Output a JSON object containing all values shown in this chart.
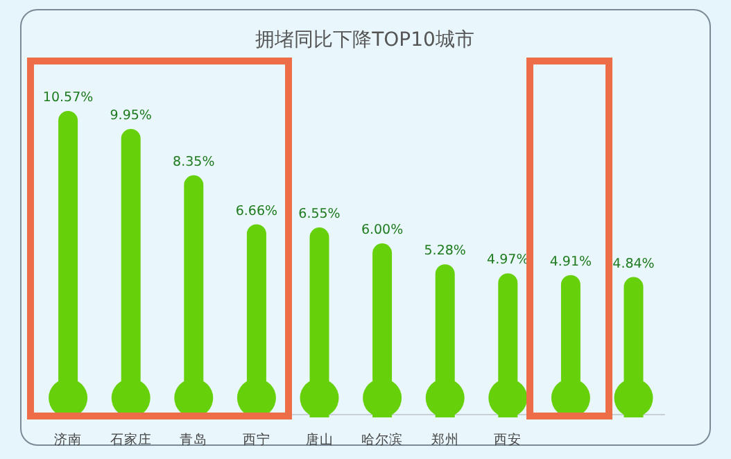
{
  "chart_data": {
    "type": "bar",
    "title": "拥堵同比下降TOP10城市",
    "categories": [
      "济南",
      "石家庄",
      "青岛",
      "西宁",
      "唐山",
      "哈尔滨",
      "郑州",
      "西安",
      null,
      null
    ],
    "values": [
      10.57,
      9.95,
      8.35,
      6.66,
      6.55,
      6.0,
      5.28,
      4.97,
      4.91,
      4.84
    ],
    "value_labels": [
      "10.57%",
      "9.95%",
      "8.35%",
      "6.66%",
      "6.55%",
      "6.00%",
      "5.28%",
      "4.97%",
      "4.91%",
      "4.84%"
    ],
    "color": "#66d10a"
  }
}
